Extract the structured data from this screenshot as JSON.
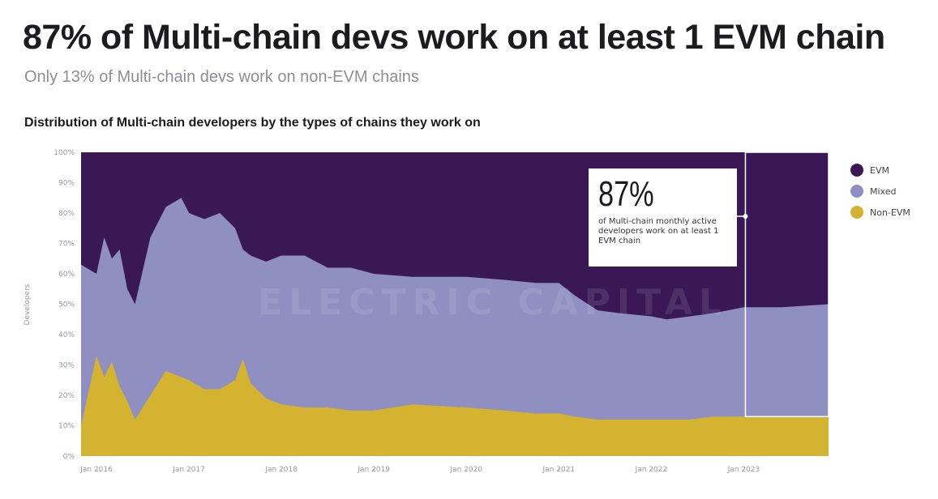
{
  "headline": "87% of Multi-chain devs work on at least 1 EVM chain",
  "subheadline": "Only 13% of Multi-chain devs work on non-EVM chains",
  "chart_data": {
    "type": "area",
    "stacked": true,
    "normalized": true,
    "title": "Distribution of Multi-chain developers by the types of chains they work on",
    "ylabel": "Developers",
    "xlabel": "",
    "ylim": [
      0,
      100
    ],
    "yticks": [
      "0%",
      "10%",
      "20%",
      "30%",
      "40%",
      "50%",
      "60%",
      "70%",
      "80%",
      "90%",
      "100%"
    ],
    "xticks": [
      "Jan 2016",
      "Jan 2017",
      "Jan 2018",
      "Jan 2019",
      "Jan 2020",
      "Jan 2021",
      "Jan 2022",
      "Jan 2023"
    ],
    "xlim": [
      "2015-11",
      "2023-12"
    ],
    "legend_position": "right",
    "watermark": "ELECTRIC CAPITAL",
    "series": [
      {
        "name": "Non-EVM",
        "color": "#d4b330"
      },
      {
        "name": "Mixed",
        "color": "#8f8fc2"
      },
      {
        "name": "EVM",
        "color": "#3a1856"
      }
    ],
    "x": [
      "2015-11",
      "2016-01",
      "2016-02",
      "2016-03",
      "2016-04",
      "2016-05",
      "2016-06",
      "2016-08",
      "2016-10",
      "2016-12",
      "2017-01",
      "2017-03",
      "2017-05",
      "2017-07",
      "2017-08",
      "2017-09",
      "2017-11",
      "2018-01",
      "2018-04",
      "2018-07",
      "2018-10",
      "2019-01",
      "2019-06",
      "2020-01",
      "2020-06",
      "2020-10",
      "2021-01",
      "2021-03",
      "2021-06",
      "2021-09",
      "2022-01",
      "2022-03",
      "2022-06",
      "2022-09",
      "2023-01",
      "2023-06",
      "2023-12"
    ],
    "non_evm": [
      10,
      33,
      26,
      31,
      23,
      18,
      12,
      20,
      28,
      26,
      25,
      22,
      22,
      25,
      32,
      24,
      19,
      17,
      16,
      16,
      15,
      15,
      17,
      16,
      15,
      14,
      14,
      13,
      12,
      12,
      12,
      12,
      12,
      13,
      13,
      13,
      13
    ],
    "non_evm_plus_mixed": [
      63,
      60,
      72,
      65,
      68,
      55,
      50,
      72,
      82,
      85,
      80,
      78,
      80,
      75,
      68,
      66,
      64,
      66,
      66,
      62,
      62,
      60,
      59,
      59,
      58,
      57,
      57,
      53,
      48,
      47,
      46,
      45,
      46,
      47,
      49,
      49,
      50
    ],
    "callout": {
      "value": "87%",
      "text": "of Multi-chain monthly active developers work on at least 1 EVM chain",
      "highlight_range": [
        "2023-01",
        "2023-12"
      ]
    }
  }
}
